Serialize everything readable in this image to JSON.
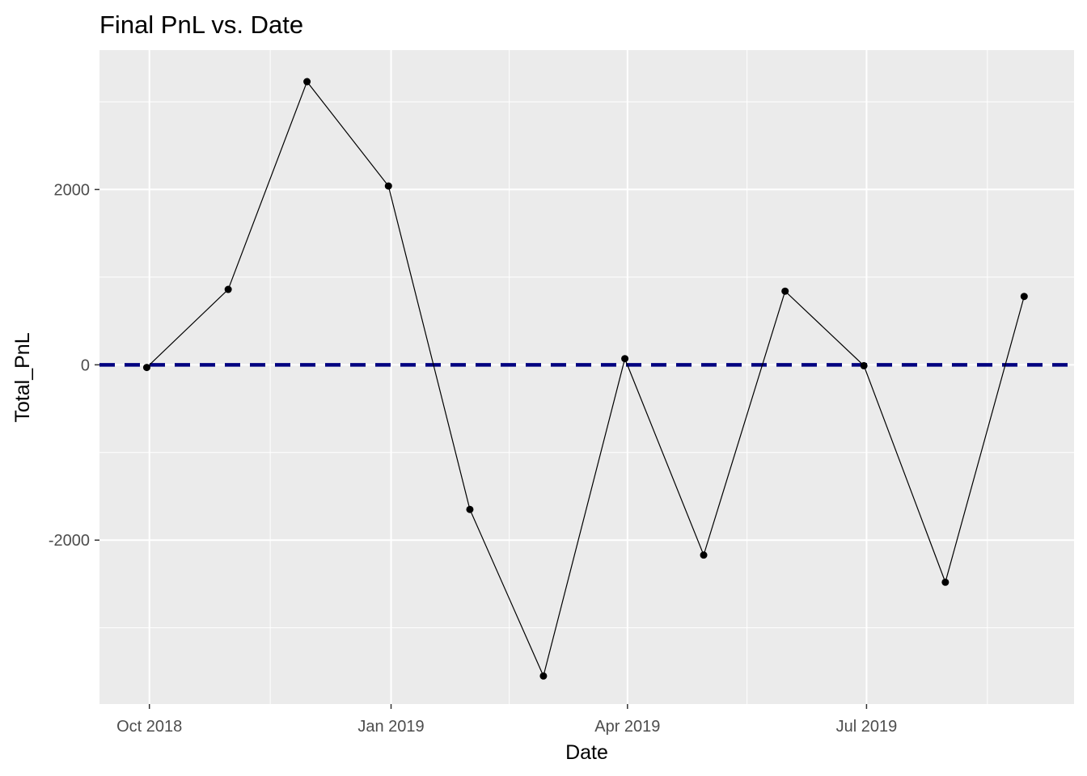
{
  "chart_data": {
    "type": "line",
    "title": "Final PnL vs. Date",
    "xlabel": "Date",
    "ylabel": "Total_PnL",
    "x_ticks": [
      {
        "date": "2018-10-01",
        "label": "Oct 2018"
      },
      {
        "date": "2019-01-01",
        "label": "Jan 2019"
      },
      {
        "date": "2019-04-01",
        "label": "Apr 2019"
      },
      {
        "date": "2019-07-01",
        "label": "Jul 2019"
      }
    ],
    "y_ticks": [
      {
        "value": -2000,
        "label": "-2000"
      },
      {
        "value": 0,
        "label": "0"
      },
      {
        "value": 2000,
        "label": "2000"
      }
    ],
    "xlim": [
      "2018-09-12",
      "2019-09-18"
    ],
    "ylim": [
      -3870,
      3590
    ],
    "grid": true,
    "series": [
      {
        "points": [
          {
            "x": "2018-09-30",
            "y": -30
          },
          {
            "x": "2018-10-31",
            "y": 860
          },
          {
            "x": "2018-11-30",
            "y": 3230
          },
          {
            "x": "2018-12-31",
            "y": 2040
          },
          {
            "x": "2019-01-31",
            "y": -1650
          },
          {
            "x": "2019-02-28",
            "y": -3550
          },
          {
            "x": "2019-03-31",
            "y": 70
          },
          {
            "x": "2019-04-30",
            "y": -2170
          },
          {
            "x": "2019-05-31",
            "y": 840
          },
          {
            "x": "2019-06-30",
            "y": -10
          },
          {
            "x": "2019-07-31",
            "y": -2480
          },
          {
            "x": "2019-08-30",
            "y": 780
          }
        ]
      }
    ],
    "reference_line": {
      "y": 0,
      "style": "dashed",
      "color": "#000080"
    },
    "colors": {
      "panel": "#EBEBEB",
      "grid": "#FFFFFF",
      "line": "#000000",
      "point": "#000000",
      "tick_text": "#4D4D4D"
    }
  }
}
